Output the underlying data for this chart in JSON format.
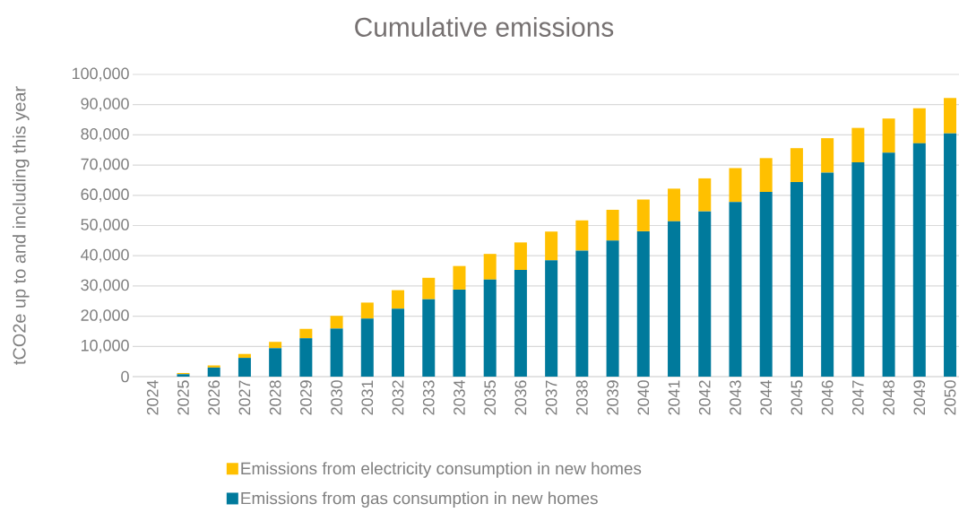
{
  "chart_data": {
    "type": "bar",
    "title": "Cumulative emissions",
    "ylabel": "tCO2e up to and including this year",
    "categories": [
      "2024",
      "2025",
      "2026",
      "2027",
      "2028",
      "2029",
      "2030",
      "2031",
      "2032",
      "2033",
      "2034",
      "2035",
      "2036",
      "2037",
      "2038",
      "2039",
      "2040",
      "2041",
      "2042",
      "2043",
      "2044",
      "2045",
      "2046",
      "2047",
      "2048",
      "2049",
      "2050"
    ],
    "stacked": true,
    "series": [
      {
        "name": "Emissions from gas consumption in new homes",
        "color": "#007a9c",
        "values": [
          0,
          800,
          3000,
          6200,
          9400,
          12700,
          15900,
          19200,
          22500,
          25600,
          28800,
          32100,
          35300,
          38500,
          41700,
          45000,
          48100,
          51400,
          54700,
          57800,
          61100,
          64400,
          67500,
          70900,
          74100,
          77200,
          80500
        ]
      },
      {
        "name": "Emissions from electricity consumption in new homes",
        "color": "#ffc000",
        "values": [
          0,
          400,
          700,
          1300,
          2100,
          3100,
          4200,
          5300,
          6100,
          7100,
          7800,
          8500,
          9100,
          9500,
          10000,
          10200,
          10500,
          10800,
          10900,
          11200,
          11200,
          11200,
          11400,
          11400,
          11300,
          11600,
          11700
        ]
      }
    ],
    "ylim": [
      0,
      100000
    ],
    "yticks": [
      {
        "value": 0,
        "label": "0"
      },
      {
        "value": 10000,
        "label": "10,000"
      },
      {
        "value": 20000,
        "label": "20,000"
      },
      {
        "value": 30000,
        "label": "30,000"
      },
      {
        "value": 40000,
        "label": "40,000"
      },
      {
        "value": 50000,
        "label": "50,000"
      },
      {
        "value": 60000,
        "label": "60,000"
      },
      {
        "value": 70000,
        "label": "70,000"
      },
      {
        "value": 80000,
        "label": "80,000"
      },
      {
        "value": 90000,
        "label": "90,000"
      },
      {
        "value": 100000,
        "label": "100,000"
      }
    ],
    "grid": "y",
    "legend": "bottom"
  }
}
